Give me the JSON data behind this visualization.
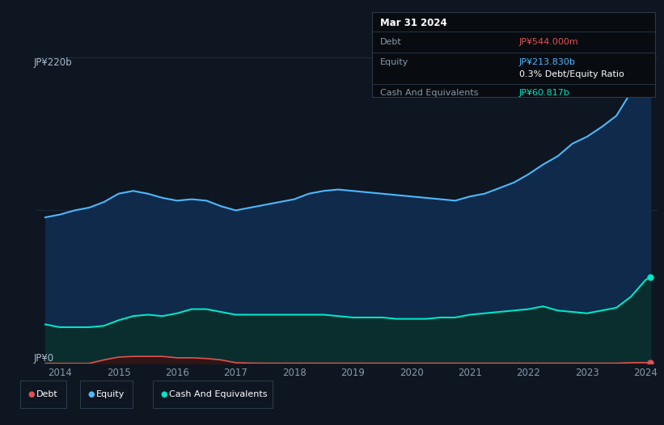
{
  "bg_color": "#0e1621",
  "plot_bg_color": "#0e1621",
  "tooltip": {
    "date": "Mar 31 2024",
    "debt_label": "Debt",
    "debt_value": "JP¥544.000m",
    "debt_color": "#e05252",
    "equity_label": "Equity",
    "equity_value": "JP¥213.830b",
    "equity_color": "#4db8ff",
    "ratio_text": "0.3% Debt/Equity Ratio",
    "ratio_bold": "0.3%",
    "cash_label": "Cash And Equivalents",
    "cash_value": "JP¥60.817b",
    "cash_color": "#00e5c8"
  },
  "years": [
    2013.75,
    2014.0,
    2014.25,
    2014.5,
    2014.75,
    2015.0,
    2015.25,
    2015.5,
    2015.75,
    2016.0,
    2016.25,
    2016.5,
    2016.75,
    2017.0,
    2017.25,
    2017.5,
    2017.75,
    2018.0,
    2018.25,
    2018.5,
    2018.75,
    2019.0,
    2019.25,
    2019.5,
    2019.75,
    2020.0,
    2020.25,
    2020.5,
    2020.75,
    2021.0,
    2021.25,
    2021.5,
    2021.75,
    2022.0,
    2022.25,
    2022.5,
    2022.75,
    2023.0,
    2023.25,
    2023.5,
    2023.75,
    2024.0,
    2024.08
  ],
  "equity": [
    105,
    107,
    110,
    112,
    116,
    122,
    124,
    122,
    119,
    117,
    118,
    117,
    113,
    110,
    112,
    114,
    116,
    118,
    122,
    124,
    125,
    124,
    123,
    122,
    121,
    120,
    119,
    118,
    117,
    120,
    122,
    126,
    130,
    136,
    143,
    149,
    158,
    163,
    170,
    178,
    195,
    213,
    215
  ],
  "cash": [
    28,
    26,
    26,
    26,
    27,
    31,
    34,
    35,
    34,
    36,
    39,
    39,
    37,
    35,
    35,
    35,
    35,
    35,
    35,
    35,
    34,
    33,
    33,
    33,
    32,
    32,
    32,
    33,
    33,
    35,
    36,
    37,
    38,
    39,
    41,
    38,
    37,
    36,
    38,
    40,
    48,
    60,
    62
  ],
  "debt": [
    0,
    0,
    0,
    0,
    2.5,
    4.5,
    5.0,
    5.0,
    5.0,
    4.0,
    4.0,
    3.5,
    2.5,
    0.5,
    0.2,
    0.1,
    0.1,
    0.1,
    0.1,
    0.1,
    0.1,
    0.1,
    0.1,
    0.1,
    0.1,
    0.1,
    0.1,
    0.1,
    0.1,
    0.1,
    0.1,
    0.1,
    0.1,
    0.1,
    0.1,
    0.1,
    0.1,
    0.1,
    0.1,
    0.1,
    0.5,
    0.544,
    0.55
  ],
  "ymax": 220,
  "ytick_label": "JP¥220b",
  "y0_label": "JP¥0",
  "grid_color": "#1e2a3a",
  "equity_line_color": "#4db8ff",
  "equity_fill_color": "#0f2a4a",
  "cash_line_color": "#00e5c8",
  "cash_fill_color": "#0a2e2e",
  "debt_line_color": "#e05252",
  "debt_fill_color": "#3a1010",
  "legend_items": [
    {
      "label": "Debt",
      "color": "#e05252"
    },
    {
      "label": "Equity",
      "color": "#4db8ff"
    },
    {
      "label": "Cash And Equivalents",
      "color": "#00e5c8"
    }
  ],
  "xtick_labels": [
    "2014",
    "2015",
    "2016",
    "2017",
    "2018",
    "2019",
    "2020",
    "2021",
    "2022",
    "2023",
    "2024"
  ],
  "xtick_positions": [
    2014,
    2015,
    2016,
    2017,
    2018,
    2019,
    2020,
    2021,
    2022,
    2023,
    2024
  ],
  "xlim": [
    2013.6,
    2024.2
  ],
  "ylim": [
    0,
    220
  ]
}
